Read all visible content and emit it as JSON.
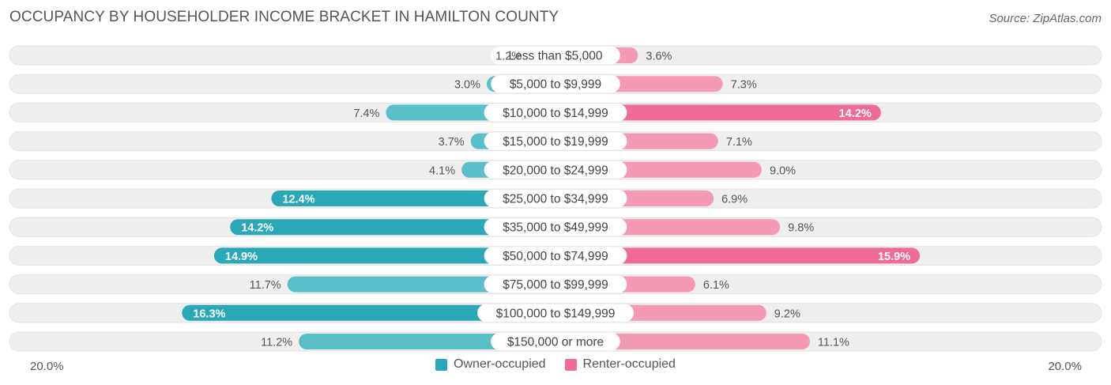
{
  "header": {
    "title": "OCCUPANCY BY HOUSEHOLDER INCOME BRACKET IN HAMILTON COUNTY",
    "source": "Source: ZipAtlas.com"
  },
  "colors": {
    "owner": "#5bbfca",
    "owner_strong": "#2ba8b8",
    "renter": "#f49ab5",
    "renter_strong": "#f06b97",
    "track": "#efefef"
  },
  "axis": {
    "left_label": "20.0%",
    "right_label": "20.0%"
  },
  "legend": {
    "owner_label": "Owner-occupied",
    "renter_label": "Renter-occupied"
  },
  "chart_data": {
    "type": "bar",
    "orientation": "horizontal-diverging",
    "title": "OCCUPANCY BY HOUSEHOLDER INCOME BRACKET IN HAMILTON COUNTY",
    "xlim": [
      -20,
      20
    ],
    "categories": [
      "Less than $5,000",
      "$5,000 to $9,999",
      "$10,000 to $14,999",
      "$15,000 to $19,999",
      "$20,000 to $24,999",
      "$25,000 to $34,999",
      "$35,000 to $49,999",
      "$50,000 to $74,999",
      "$75,000 to $99,999",
      "$100,000 to $149,999",
      "$150,000 or more"
    ],
    "series": [
      {
        "name": "Owner-occupied",
        "side": "left",
        "values": [
          1.2,
          3.0,
          7.4,
          3.7,
          4.1,
          12.4,
          14.2,
          14.9,
          11.7,
          16.3,
          11.2
        ],
        "labels": [
          "1.2%",
          "3.0%",
          "7.4%",
          "3.7%",
          "4.1%",
          "12.4%",
          "14.2%",
          "14.9%",
          "11.7%",
          "16.3%",
          "11.2%"
        ]
      },
      {
        "name": "Renter-occupied",
        "side": "right",
        "values": [
          3.6,
          7.3,
          14.2,
          7.1,
          9.0,
          6.9,
          9.8,
          15.9,
          6.1,
          9.2,
          11.1
        ],
        "labels": [
          "3.6%",
          "7.3%",
          "14.2%",
          "7.1%",
          "9.0%",
          "6.9%",
          "9.8%",
          "15.9%",
          "6.1%",
          "9.2%",
          "11.1%"
        ]
      }
    ]
  }
}
